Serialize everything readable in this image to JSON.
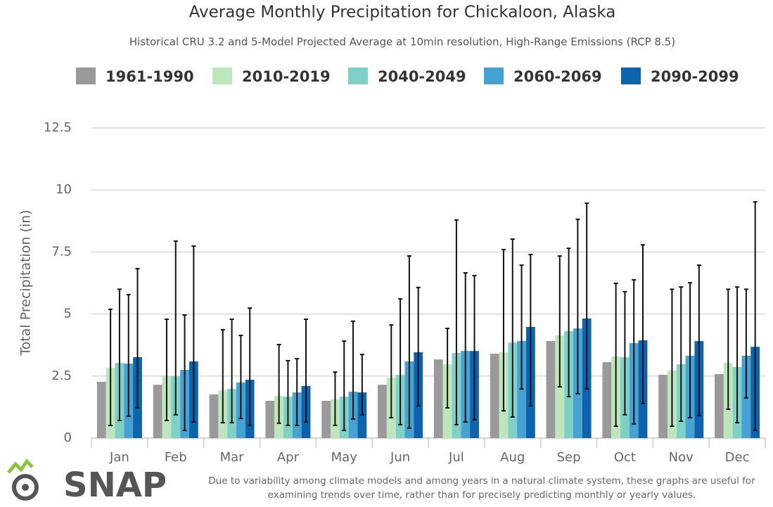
{
  "chart_data": {
    "type": "bar",
    "title": "Average Monthly Precipitation for Chickaloon, Alaska",
    "subtitle": "Historical CRU 3.2 and 5-Model Projected Average at 10min resolution, High-Range Emissions (RCP 8.5)",
    "y_label": "Total Precipitation (in)",
    "categories": [
      "Jan",
      "Feb",
      "Mar",
      "Apr",
      "May",
      "Jun",
      "Jul",
      "Aug",
      "Sep",
      "Oct",
      "Nov",
      "Dec"
    ],
    "series": [
      {
        "name": "1961-1990",
        "color": "#9a9a9a",
        "values": [
          2.27,
          2.15,
          1.76,
          1.5,
          1.5,
          2.15,
          3.17,
          3.4,
          3.91,
          3.06,
          2.55,
          2.58
        ]
      },
      {
        "name": "2010-2019",
        "color": "#bde6bd",
        "values": [
          2.83,
          2.49,
          1.93,
          1.7,
          1.56,
          2.44,
          2.98,
          3.46,
          4.14,
          3.29,
          2.72,
          3.03
        ],
        "lower": [
          0.51,
          0.71,
          0.62,
          0.6,
          0.51,
          0.82,
          1.22,
          1.1,
          2.07,
          0.48,
          0.48,
          1.16
        ],
        "upper": [
          5.19,
          4.79,
          4.37,
          3.77,
          2.66,
          4.56,
          4.42,
          7.6,
          7.34,
          6.24,
          6.0,
          6.0
        ]
      },
      {
        "name": "2040-2049",
        "color": "#7fd0c6",
        "values": [
          3.03,
          2.49,
          1.98,
          1.67,
          1.67,
          2.55,
          3.43,
          3.85,
          4.31,
          3.26,
          2.98,
          2.86
        ],
        "lower": [
          0.71,
          0.94,
          0.62,
          0.51,
          0.31,
          0.54,
          0.54,
          0.85,
          1.67,
          0.94,
          0.68,
          0.62
        ],
        "upper": [
          6.0,
          7.94,
          4.79,
          3.12,
          3.91,
          5.61,
          8.79,
          8.02,
          7.65,
          5.9,
          6.09,
          6.09
        ]
      },
      {
        "name": "2060-2069",
        "color": "#45a2d2",
        "values": [
          3.0,
          2.75,
          2.24,
          1.84,
          1.87,
          3.09,
          3.51,
          3.91,
          4.42,
          3.83,
          3.32,
          3.32
        ],
        "lower": [
          0.88,
          0.31,
          0.79,
          0.51,
          0.77,
          0.4,
          0.65,
          1.98,
          1.79,
          0.57,
          0.82,
          1.62
        ],
        "upper": [
          5.78,
          4.96,
          4.14,
          3.2,
          4.71,
          7.34,
          6.66,
          6.97,
          8.82,
          6.38,
          6.26,
          6.0
        ]
      },
      {
        "name": "2090-2099",
        "color": "#0e63ad",
        "values": [
          3.26,
          3.09,
          2.35,
          2.1,
          1.84,
          3.46,
          3.51,
          4.48,
          4.82,
          3.94,
          3.91,
          3.68
        ],
        "lower": [
          1.22,
          0.65,
          0.51,
          0.65,
          0.94,
          1.3,
          0.74,
          1.3,
          1.98,
          1.39,
          0.91,
          0.31
        ],
        "upper": [
          6.83,
          7.74,
          5.24,
          4.79,
          3.37,
          6.07,
          6.55,
          7.4,
          9.47,
          7.79,
          6.97,
          9.52
        ]
      }
    ],
    "ylim": [
      0,
      12.5
    ],
    "yticks": [
      0,
      2.5,
      5,
      7.5,
      10,
      12.5
    ],
    "grid": true,
    "footnote": "Due to variability among climate models and among years in a natural climate system, these graphs are useful for examining trends over time, rather than for precisely predicting monthly or yearly values.",
    "logo_text": "SNAP"
  }
}
